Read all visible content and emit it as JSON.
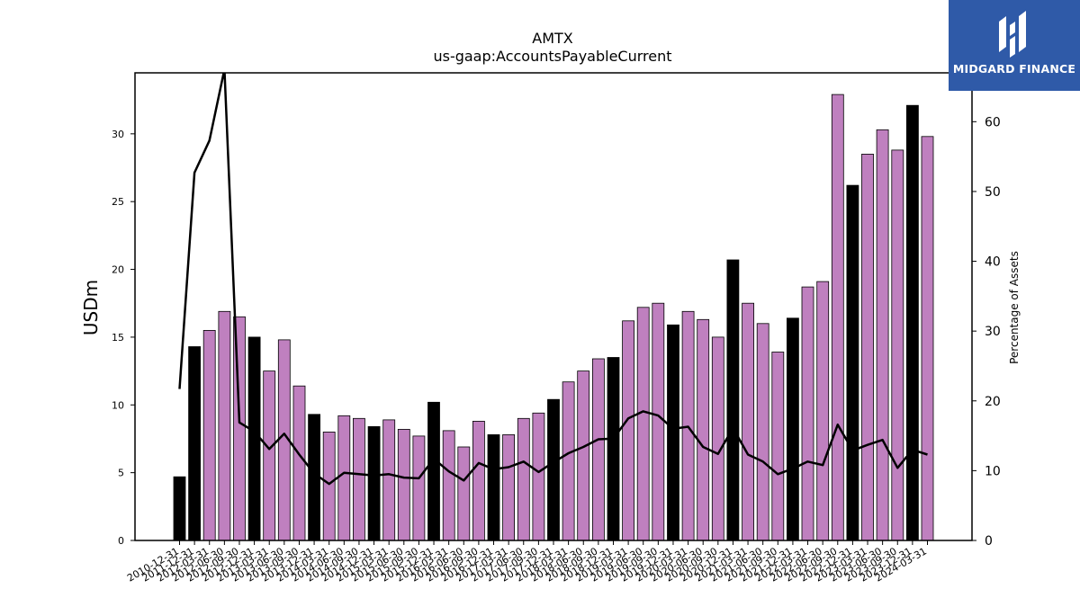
{
  "chart_data": {
    "type": "bar",
    "title": "AMTX",
    "subtitle": "us-gaap:AccountsPayableCurrent",
    "ylabel": "USDm",
    "y2label": "Percentage of Assets",
    "ylim": [
      0,
      34.5
    ],
    "y2lim": [
      0,
      67
    ],
    "yticks": [
      0,
      5,
      10,
      15,
      20,
      25,
      30
    ],
    "y2ticks": [
      0,
      10,
      20,
      30,
      40,
      50,
      60
    ],
    "bar_colors": {
      "annual": "#000000",
      "quarterly": "#bf80bf"
    },
    "categories": [
      "2010-12-31",
      "2011-12-31",
      "2012-03-31",
      "2012-06-30",
      "2012-09-30",
      "2012-12-31",
      "2013-03-31",
      "2013-06-30",
      "2013-09-30",
      "2013-12-31",
      "2014-03-31",
      "2014-06-30",
      "2014-09-30",
      "2014-12-31",
      "2015-03-31",
      "2015-06-30",
      "2015-09-30",
      "2015-12-31",
      "2016-03-31",
      "2016-06-30",
      "2016-09-30",
      "2016-12-31",
      "2017-03-31",
      "2017-06-30",
      "2017-09-30",
      "2017-12-31",
      "2018-03-31",
      "2018-06-30",
      "2018-09-30",
      "2018-12-31",
      "2019-03-31",
      "2019-06-30",
      "2019-09-30",
      "2019-12-31",
      "2020-03-31",
      "2020-06-30",
      "2020-09-30",
      "2020-12-31",
      "2021-03-31",
      "2021-06-30",
      "2021-09-30",
      "2021-12-31",
      "2022-03-31",
      "2022-06-30",
      "2022-09-30",
      "2022-12-31",
      "2023-03-31",
      "2023-06-30",
      "2023-09-30",
      "2023-12-31",
      "2024-03-31"
    ],
    "series": [
      {
        "type": "bar",
        "axis": "left",
        "values": [
          4.7,
          14.3,
          15.5,
          16.9,
          16.5,
          15.0,
          12.5,
          14.8,
          11.4,
          9.3,
          8.0,
          9.2,
          9.0,
          8.4,
          8.9,
          8.2,
          7.7,
          10.2,
          8.1,
          6.9,
          8.8,
          7.8,
          7.8,
          9.0,
          9.4,
          10.4,
          11.7,
          12.5,
          13.4,
          13.5,
          16.2,
          17.2,
          17.5,
          15.9,
          16.9,
          16.3,
          15.0,
          20.7,
          17.5,
          16.0,
          13.9,
          16.4,
          18.7,
          19.1,
          32.9,
          26.2,
          28.5,
          30.3,
          28.8,
          32.1,
          29.8
        ],
        "annual": [
          true,
          true,
          false,
          false,
          false,
          true,
          false,
          false,
          false,
          true,
          false,
          false,
          false,
          true,
          false,
          false,
          false,
          true,
          false,
          false,
          false,
          true,
          false,
          false,
          false,
          true,
          false,
          false,
          false,
          true,
          false,
          false,
          false,
          true,
          false,
          false,
          false,
          true,
          false,
          false,
          false,
          true,
          false,
          false,
          false,
          true,
          false,
          false,
          false,
          true,
          false
        ]
      },
      {
        "type": "line",
        "axis": "right",
        "color": "#000000",
        "values": [
          21.7,
          52.7,
          57.3,
          67.5,
          16.9,
          15.6,
          13.1,
          15.3,
          12.3,
          9.6,
          8.1,
          9.7,
          9.5,
          9.3,
          9.5,
          9.0,
          8.9,
          11.7,
          9.9,
          8.6,
          11.1,
          10.2,
          10.5,
          11.3,
          9.8,
          11.2,
          12.5,
          13.4,
          14.5,
          14.6,
          17.5,
          18.5,
          17.9,
          16.0,
          16.3,
          13.4,
          12.4,
          16.1,
          12.3,
          11.3,
          9.5,
          10.3,
          11.3,
          10.8,
          16.6,
          12.9,
          13.7,
          14.4,
          10.4,
          13.0,
          12.3
        ]
      }
    ]
  },
  "branding": {
    "logo_text": "MIDGARD FINANCE",
    "logo_color": "#2f5aa8"
  }
}
